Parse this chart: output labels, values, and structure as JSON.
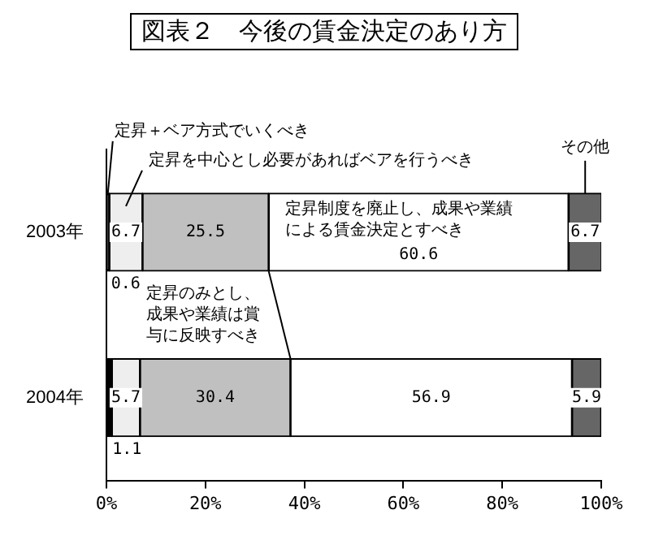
{
  "chart_data": {
    "type": "bar",
    "title": "図表２　今後の賃金決定のあり方",
    "orientation": "horizontal",
    "stacked": true,
    "categories": [
      "2003年",
      "2004年"
    ],
    "series": [
      {
        "name": "定昇＋ベア方式でいくべき",
        "color": "#000000",
        "values": [
          0.6,
          1.1
        ]
      },
      {
        "name": "定昇を中心とし必要があればベアを行うべき",
        "color": "#eeeeee",
        "values": [
          6.7,
          5.7
        ]
      },
      {
        "name": "定昇のみとし、成果や業績は賞与に反映すべき",
        "color": "#c0c0c0",
        "values": [
          25.5,
          30.4
        ]
      },
      {
        "name": "定昇制度を廃止し、成果や業績による賃金決定とすべき",
        "color": "#ffffff",
        "values": [
          60.6,
          56.9
        ]
      },
      {
        "name": "その他",
        "color": "#666666",
        "values": [
          6.7,
          5.9
        ]
      }
    ],
    "xlim": [
      0,
      100
    ],
    "xticks": [
      {
        "value": 0,
        "label": "0%"
      },
      {
        "value": 20,
        "label": "20%"
      },
      {
        "value": 40,
        "label": "40%"
      },
      {
        "value": 60,
        "label": "60%"
      },
      {
        "value": 80,
        "label": "80%"
      },
      {
        "value": 100,
        "label": "100%"
      }
    ],
    "data_labels": true,
    "legend": false
  }
}
